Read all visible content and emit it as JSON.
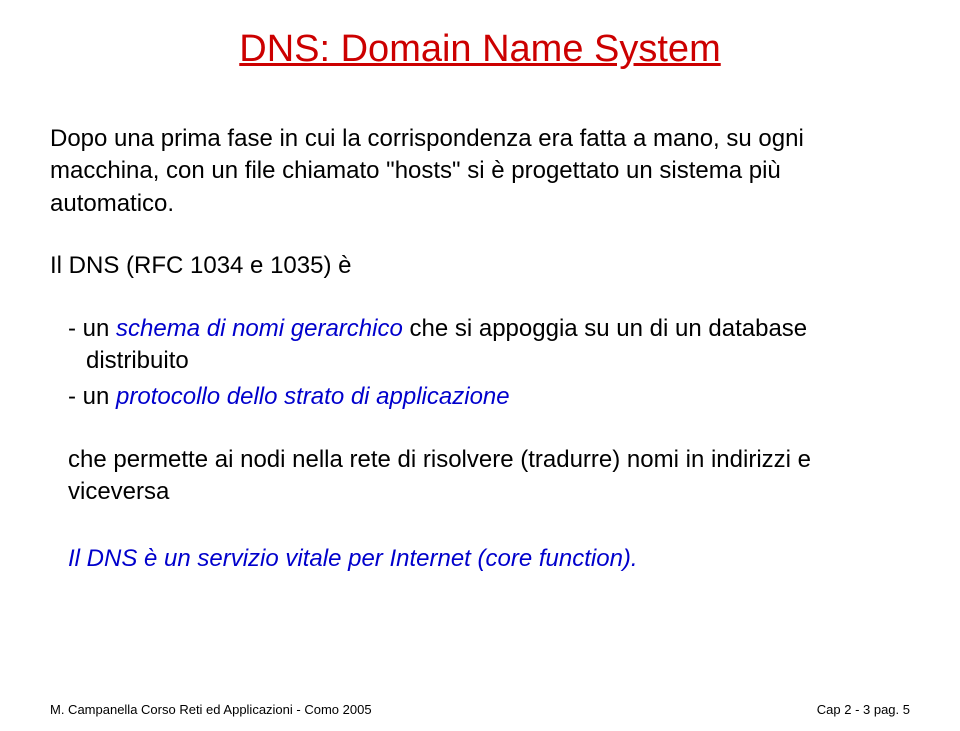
{
  "title": "DNS: Domain Name System",
  "para1": {
    "t1": "Dopo una prima fase in cui la corrispondenza era fatta a mano, su ogni macchina, con un file chiamato \"hosts\" si è progettato un sistema più automatico."
  },
  "para2": "Il DNS (RFC 1034 e 1035) è",
  "bullets": {
    "b1": {
      "prefix": "- un ",
      "em": "schema di nomi gerarchico",
      "suffix": " che si appoggia su un di un database distribuito"
    },
    "b2": {
      "prefix": "- un ",
      "em": "protocollo dello strato di applicazione",
      "suffix": ""
    }
  },
  "closing": "che permette ai nodi nella rete di risolvere (tradurre) nomi in indirizzi e viceversa",
  "final": "Il DNS è un servizio vitale per Internet (core function).",
  "footer": {
    "left": "M. Campanella Corso Reti ed Applicazioni - Como 2005",
    "right_prefix": "Cap 2 - 3 pag. ",
    "right_page": "5"
  },
  "colors": {
    "title": "#cc0000",
    "emphasis": "#0000cc",
    "body": "#000000",
    "background": "#ffffff"
  }
}
